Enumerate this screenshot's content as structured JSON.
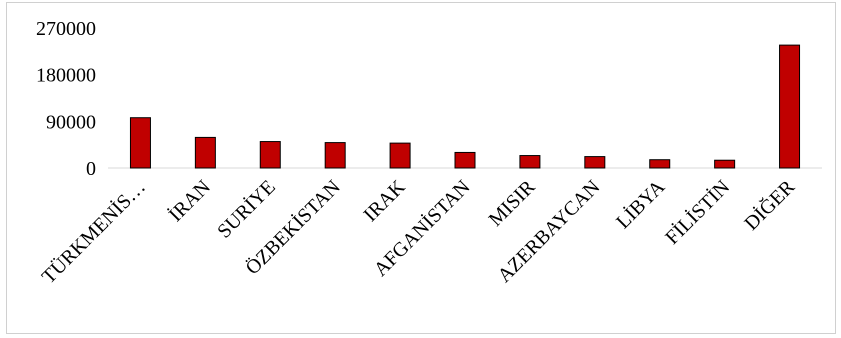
{
  "chart_data": {
    "type": "bar",
    "categories": [
      "TÜRKMENİS…",
      "İRAN",
      "SURİYE",
      "ÖZBEKİSTAN",
      "IRAK",
      "AFGANİSTAN",
      "MISIR",
      "AZERBAYCAN",
      "LİBYA",
      "FİLİSTİN",
      "DİĞER"
    ],
    "values": [
      97000,
      59000,
      51000,
      49000,
      48000,
      30000,
      24000,
      22000,
      16000,
      15000,
      237000
    ],
    "title": "",
    "xlabel": "",
    "ylabel": "",
    "ylim": [
      0,
      270000
    ],
    "yticks": [
      "0",
      "90000",
      "180000",
      "270000"
    ],
    "grid": false,
    "legend": "none",
    "bar_color": "#c00000"
  }
}
